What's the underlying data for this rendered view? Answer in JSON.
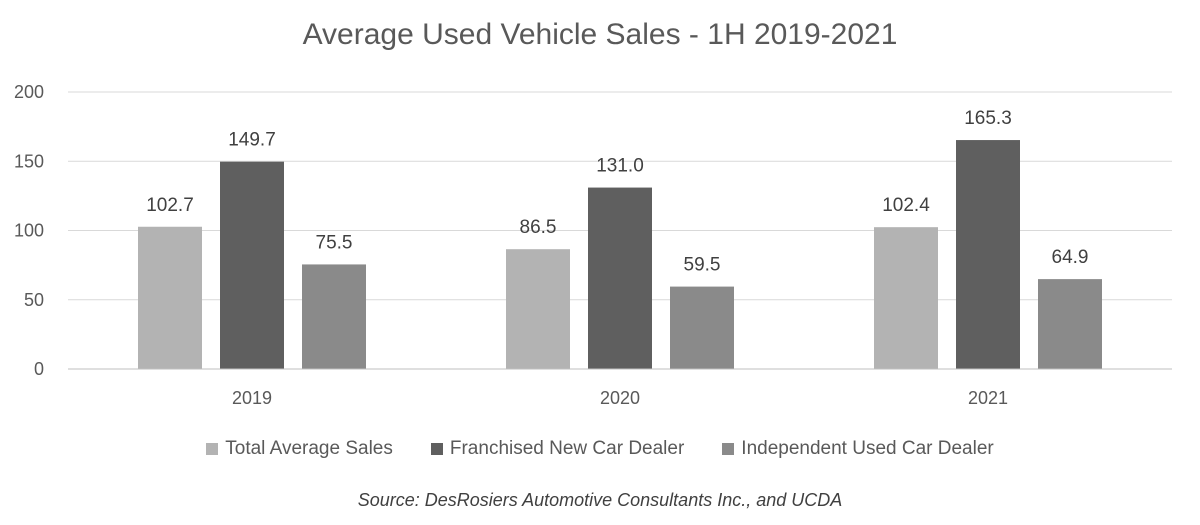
{
  "chart_data": {
    "type": "bar",
    "title": "Average Used Vehicle Sales - 1H 2019-2021",
    "categories": [
      "2019",
      "2020",
      "2021"
    ],
    "series": [
      {
        "name": "Total Average Sales",
        "values": [
          102.7,
          86.5,
          102.4
        ],
        "color": "#b3b3b3"
      },
      {
        "name": "Franchised New Car Dealer",
        "values": [
          149.7,
          131.0,
          165.3
        ],
        "color": "#5f5f5f"
      },
      {
        "name": "Independent Used Car Dealer",
        "values": [
          75.5,
          59.5,
          64.9
        ],
        "color": "#8a8a8a"
      }
    ],
    "yticks": [
      "0",
      "50",
      "100",
      "150",
      "200"
    ],
    "ylim": [
      0,
      200
    ],
    "grid": true,
    "legend_position": "bottom",
    "source": "Source: DesRosiers Automotive Consultants Inc., and UCDA"
  }
}
